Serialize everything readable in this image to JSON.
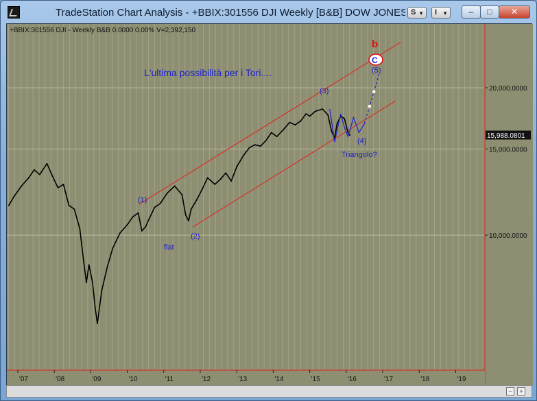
{
  "window": {
    "title": "TradeStation Chart Analysis - +BBIX:301556 DJI Weekly [B&B] DOW JONES IN",
    "s_button": "S",
    "i_button": "I",
    "minimize": "–",
    "maximize": "□",
    "close": "✕"
  },
  "chart": {
    "header": "+BBIX:301556 DJI - Weekly  B&B  0.0000  0.00%  V=2,392,150",
    "annotation_title": "L'ultima possibilità per i Tori....",
    "wave_labels": {
      "w1": "(1)",
      "w2": "(2)",
      "w3": "(3)",
      "w4": "(4)",
      "w5": "(5)",
      "flat": "flat",
      "triangle": "Triangolo?",
      "b": "b",
      "c": "C"
    },
    "price_axis": [
      {
        "label": "20,000.0000",
        "value": 20000
      },
      {
        "label": "15,000.0000",
        "value": 15000
      },
      {
        "label": "10,000.0000",
        "value": 10000
      }
    ],
    "last_price_label": "15,988.0801",
    "last_price": 15988.08,
    "time_axis": [
      {
        "label": "'07",
        "year": 2007
      },
      {
        "label": "'08",
        "year": 2008
      },
      {
        "label": "'09",
        "year": 2009
      },
      {
        "label": "'10",
        "year": 2010
      },
      {
        "label": "'11",
        "year": 2011
      },
      {
        "label": "'12",
        "year": 2012
      },
      {
        "label": "'13",
        "year": 2013
      },
      {
        "label": "'14",
        "year": 2014
      },
      {
        "label": "'15",
        "year": 2015
      },
      {
        "label": "'16",
        "year": 2016
      },
      {
        "label": "'17",
        "year": 2017
      },
      {
        "label": "'18",
        "year": 2018
      },
      {
        "label": "'19",
        "year": 2019
      }
    ],
    "colors": {
      "background": "#8e8f72",
      "grid": "#c9c9b4",
      "price": "#000000",
      "channel": "#e0201a",
      "waves": "#1b1fd0",
      "annotation": "#1b1fd0",
      "b_label": "#e01010"
    }
  },
  "chart_data": {
    "type": "line",
    "title": "",
    "xlabel": "",
    "ylabel": "",
    "xlim": [
      2006.7,
      2019.8
    ],
    "ylim": [
      5300,
      27000
    ],
    "y_scale": "log",
    "series": [
      {
        "name": "",
        "x": [
          2006.75,
          2006.9,
          2007.1,
          2007.3,
          2007.45,
          2007.6,
          2007.8,
          2007.95,
          2008.1,
          2008.25,
          2008.4,
          2008.55,
          2008.7,
          2008.8,
          2008.88,
          2008.95,
          2009.05,
          2009.12,
          2009.18,
          2009.3,
          2009.45,
          2009.6,
          2009.8,
          2010.0,
          2010.15,
          2010.3,
          2010.4,
          2010.5,
          2010.6,
          2010.75,
          2010.9,
          2011.1,
          2011.3,
          2011.5,
          2011.6,
          2011.68,
          2011.75,
          2011.9,
          2012.05,
          2012.2,
          2012.4,
          2012.55,
          2012.7,
          2012.85,
          2013.0,
          2013.2,
          2013.35,
          2013.5,
          2013.65,
          2013.8,
          2013.95,
          2014.1,
          2014.3,
          2014.45,
          2014.6,
          2014.75,
          2014.9,
          2015.0,
          2015.15,
          2015.35,
          2015.5,
          2015.6,
          2015.68,
          2015.75,
          2015.85,
          2015.95,
          2016.05,
          2016.1
        ],
        "values": [
          11500,
          12000,
          12600,
          13100,
          13600,
          13300,
          14000,
          13200,
          12500,
          12700,
          11500,
          11300,
          10300,
          8900,
          8000,
          8700,
          8000,
          7100,
          6600,
          7700,
          8600,
          9400,
          10100,
          10500,
          10900,
          11100,
          10200,
          10400,
          10800,
          11400,
          11600,
          12200,
          12600,
          12100,
          11000,
          10700,
          11300,
          11800,
          12400,
          13100,
          12700,
          13000,
          13400,
          12900,
          13800,
          14600,
          15100,
          15300,
          15200,
          15600,
          16200,
          15900,
          16500,
          17000,
          16800,
          17100,
          17700,
          17500,
          17900,
          18100,
          17600,
          16300,
          15800,
          16900,
          17500,
          17300,
          16200,
          16000
        ]
      },
      {
        "name": "",
        "x": [
          2015.55,
          2015.68,
          2015.85,
          2015.95,
          2016.05,
          2016.2,
          2016.35,
          2016.5
        ],
        "values": [
          18100,
          15500,
          17700,
          16600,
          15900,
          17400,
          16200,
          16900
        ]
      },
      {
        "name": "",
        "x": [
          2016.5,
          2016.9
        ],
        "values": [
          16900,
          21300
        ]
      }
    ],
    "channel_lines": [
      {
        "x": [
          2010.35,
          2017.5
        ],
        "values": [
          11600,
          24800
        ]
      },
      {
        "x": [
          2011.8,
          2017.35
        ],
        "values": [
          10400,
          18800
        ]
      }
    ]
  }
}
